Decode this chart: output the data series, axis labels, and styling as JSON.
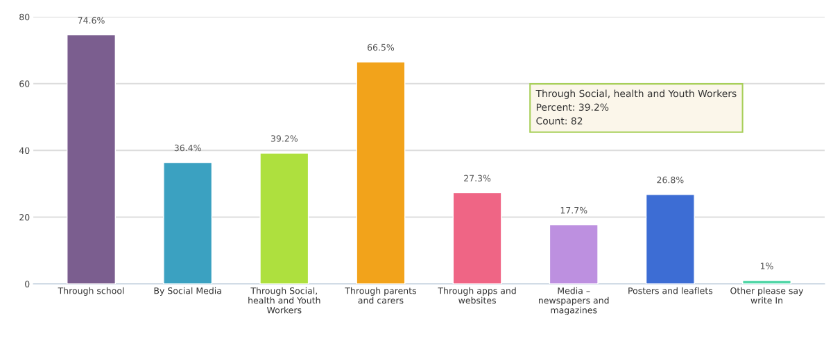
{
  "chart_data": {
    "type": "bar",
    "categories": [
      "Through school",
      "By Social Media",
      "Through Social,\nhealth and Youth\nWorkers",
      "Through parents\nand carers",
      "Through apps and\nwebsites",
      "Media –\nnewspapers and\nmagazines",
      "Posters and leaflets",
      "Other please say\nwrite In"
    ],
    "values": [
      74.6,
      36.4,
      39.2,
      66.5,
      27.3,
      17.7,
      26.8,
      1
    ],
    "colors": [
      "#7b5e8f",
      "#3ba1c1",
      "#aee03e",
      "#f2a31b",
      "#ef6585",
      "#bd90e0",
      "#3d6dd4",
      "#4fd6a6"
    ],
    "value_labels": [
      "74.6%",
      "36.4%",
      "39.2%",
      "66.5%",
      "27.3%",
      "17.7%",
      "26.8%",
      "1%"
    ],
    "ylim": [
      0,
      80
    ],
    "yticks": [
      0,
      20,
      40,
      60,
      80
    ],
    "grid": "y",
    "annotations": [
      "Through Social, health and Youth Workers\nPercent: 39.2%\nCount: 82"
    ]
  }
}
